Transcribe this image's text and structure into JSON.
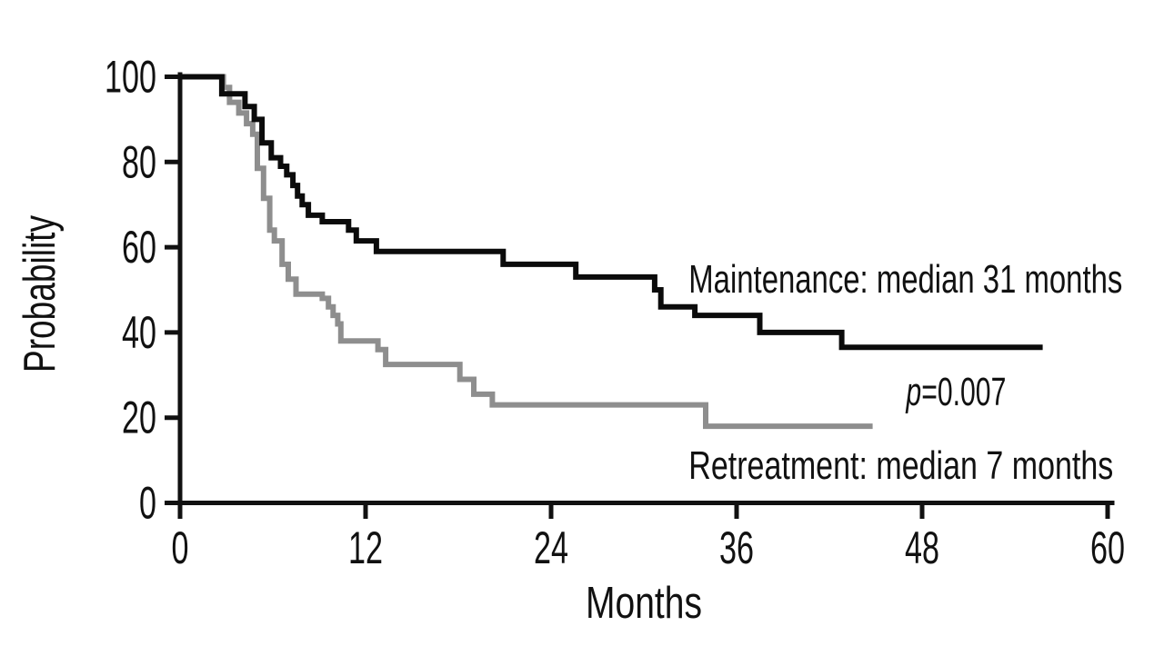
{
  "chart_data": {
    "type": "line",
    "subtype": "kaplan-meier-step",
    "title": "",
    "xlabel": "Months",
    "ylabel": "Probability",
    "xlim": [
      0,
      60
    ],
    "ylim": [
      0,
      100
    ],
    "x_ticks": [
      "0",
      "12",
      "24",
      "36",
      "48",
      "60"
    ],
    "y_ticks": [
      "0",
      "20",
      "40",
      "60",
      "80",
      "100"
    ],
    "grid": false,
    "legend_position": "inline-annotations",
    "axis_color": "#111111",
    "background_color": "#ffffff",
    "series": [
      {
        "name": "Maintenance",
        "label": "Maintenance: median 31 months",
        "median_months": 31,
        "color": "#0b0b0b",
        "start": [
          0,
          100
        ],
        "end_month": 55.8,
        "steps": [
          [
            2.7,
            96
          ],
          [
            4.2,
            93
          ],
          [
            4.8,
            90
          ],
          [
            5.3,
            84.5
          ],
          [
            5.9,
            81
          ],
          [
            6.5,
            79
          ],
          [
            6.9,
            77
          ],
          [
            7.3,
            74.5
          ],
          [
            7.6,
            72
          ],
          [
            7.9,
            70
          ],
          [
            8.3,
            67.5
          ],
          [
            9.2,
            66
          ],
          [
            10.9,
            64
          ],
          [
            11.4,
            61.5
          ],
          [
            12.7,
            59
          ],
          [
            20.9,
            56
          ],
          [
            25.6,
            53
          ],
          [
            30.7,
            50
          ],
          [
            31.1,
            46
          ],
          [
            33.3,
            44
          ],
          [
            37.5,
            40
          ],
          [
            42.8,
            36.5
          ]
        ]
      },
      {
        "name": "Retreatment",
        "label": "Retreatment: median 7 months",
        "median_months": 7,
        "color": "#8e8e8e",
        "start": [
          0,
          100
        ],
        "end_month": 44.8,
        "steps": [
          [
            2.8,
            97.5
          ],
          [
            3.2,
            94
          ],
          [
            3.8,
            91.5
          ],
          [
            4.3,
            89
          ],
          [
            4.7,
            86.5
          ],
          [
            5.0,
            78.5
          ],
          [
            5.4,
            71.5
          ],
          [
            5.8,
            64
          ],
          [
            6.1,
            61.5
          ],
          [
            6.6,
            56
          ],
          [
            7.0,
            52.5
          ],
          [
            7.5,
            49
          ],
          [
            9.2,
            48
          ],
          [
            9.6,
            46
          ],
          [
            9.9,
            44
          ],
          [
            10.2,
            42
          ],
          [
            10.4,
            38
          ],
          [
            12.8,
            36
          ],
          [
            13.3,
            32.5
          ],
          [
            18.1,
            29
          ],
          [
            19.0,
            25.5
          ],
          [
            20.2,
            23
          ],
          [
            34.0,
            18
          ]
        ]
      }
    ],
    "annotations": [
      {
        "id": "maintenance-label",
        "text": "Maintenance: median 31 months",
        "x_month": 32.9,
        "y_prob": 49.4,
        "anchor": "start",
        "color": "#0b0b0b"
      },
      {
        "id": "p-value",
        "text": "p=0.007",
        "text_italic": "p",
        "text_rest": "=0.007",
        "x_month": 50.2,
        "y_prob": 22.9,
        "anchor": "middle",
        "color": "#111111"
      },
      {
        "id": "retreatment-label",
        "text": "Retreatment: median 7 months",
        "x_month": 32.9,
        "y_prob": 5.6,
        "anchor": "start",
        "color": "#6b6b6b"
      }
    ]
  }
}
